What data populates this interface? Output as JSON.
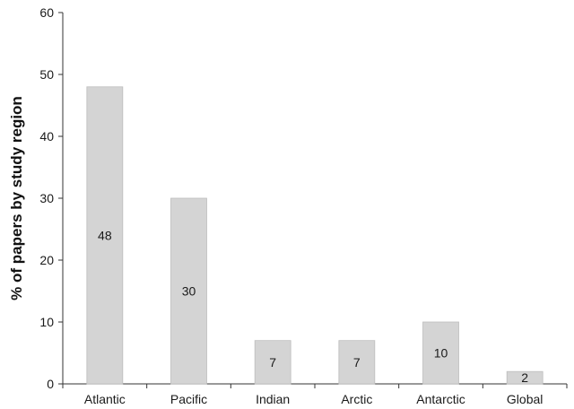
{
  "chart_data": {
    "type": "bar",
    "categories": [
      "Atlantic",
      "Pacific",
      "Indian",
      "Arctic",
      "Antarctic",
      "Global"
    ],
    "values": [
      48,
      30,
      7,
      7,
      10,
      2
    ],
    "data_labels": [
      "48",
      "30",
      "7",
      "7",
      "10",
      "2"
    ],
    "title": "",
    "xlabel": "",
    "ylabel": "% of papers by study region",
    "ylim": [
      0,
      60
    ],
    "yticks": [
      0,
      10,
      20,
      30,
      40,
      50,
      60
    ],
    "grid": false,
    "legend": "none",
    "colors": {
      "bar": "#d4d4d4",
      "bar_edge": "#bdbdbd",
      "axis": "#333333",
      "text": "#1a1a1a"
    }
  }
}
